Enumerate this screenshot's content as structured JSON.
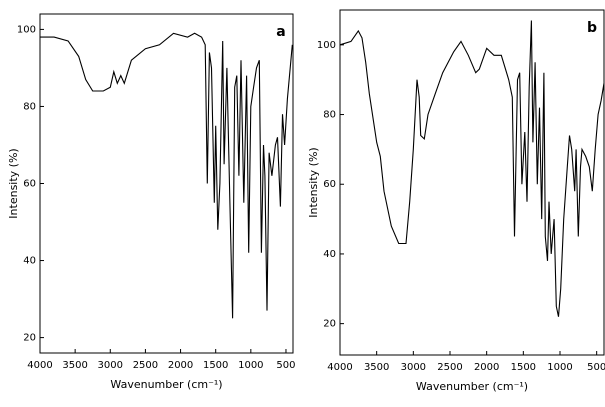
{
  "chart_data": [
    {
      "type": "line",
      "title": "a",
      "xlabel": "Wavenumber (cm⁻¹)",
      "ylabel": "Intensity (%)",
      "xlim": [
        4000,
        400
      ],
      "ylim": [
        16,
        104
      ],
      "xticks": [
        4000,
        3500,
        3000,
        2500,
        2000,
        1500,
        1000,
        500
      ],
      "yticks": [
        20,
        40,
        60,
        80,
        100
      ],
      "x": [
        4000,
        3800,
        3600,
        3450,
        3350,
        3250,
        3100,
        3000,
        2950,
        2900,
        2850,
        2800,
        2700,
        2500,
        2300,
        2100,
        1900,
        1800,
        1700,
        1650,
        1620,
        1590,
        1560,
        1520,
        1500,
        1470,
        1440,
        1400,
        1380,
        1340,
        1300,
        1260,
        1230,
        1200,
        1170,
        1140,
        1100,
        1060,
        1030,
        1000,
        960,
        920,
        880,
        850,
        820,
        800,
        770,
        740,
        700,
        650,
        620,
        580,
        550,
        520,
        480,
        440,
        410
      ],
      "series": [
        {
          "name": "a",
          "color": "#000000",
          "values": [
            98,
            98,
            97,
            93,
            87,
            84,
            84,
            85,
            89,
            86,
            88,
            86,
            92,
            95,
            96,
            99,
            98,
            99,
            98,
            96,
            60,
            94,
            90,
            55,
            75,
            48,
            60,
            97,
            65,
            90,
            56,
            25,
            85,
            88,
            62,
            92,
            55,
            88,
            42,
            80,
            85,
            90,
            92,
            42,
            70,
            62,
            27,
            68,
            62,
            70,
            72,
            54,
            78,
            70,
            82,
            90,
            96
          ]
        }
      ]
    },
    {
      "type": "line",
      "title": "b",
      "xlabel": "Wavenumber (cm⁻¹)",
      "ylabel": "Intensity (%)",
      "xlim": [
        4000,
        400
      ],
      "ylim": [
        11,
        110
      ],
      "xticks": [
        4000,
        3500,
        3000,
        2500,
        2000,
        1500,
        1000,
        500
      ],
      "yticks": [
        20,
        40,
        60,
        80,
        100
      ],
      "x": [
        4000,
        3850,
        3750,
        3700,
        3650,
        3600,
        3500,
        3450,
        3400,
        3300,
        3200,
        3100,
        3050,
        3000,
        2950,
        2920,
        2900,
        2850,
        2800,
        2700,
        2600,
        2450,
        2350,
        2250,
        2150,
        2100,
        2000,
        1900,
        1800,
        1700,
        1650,
        1620,
        1580,
        1550,
        1520,
        1480,
        1450,
        1420,
        1390,
        1370,
        1340,
        1310,
        1280,
        1250,
        1220,
        1200,
        1170,
        1150,
        1120,
        1080,
        1050,
        1020,
        990,
        950,
        900,
        870,
        840,
        800,
        780,
        750,
        720,
        700,
        650,
        600,
        560,
        520,
        480,
        440,
        400
      ],
      "series": [
        {
          "name": "b",
          "color": "#000000",
          "values": [
            100,
            101,
            104,
            102,
            95,
            86,
            72,
            68,
            58,
            48,
            43,
            43,
            55,
            70,
            90,
            85,
            74,
            73,
            80,
            86,
            92,
            98,
            101,
            97,
            92,
            93,
            99,
            97,
            97,
            90,
            85,
            45,
            90,
            92,
            60,
            75,
            55,
            88,
            107,
            72,
            95,
            60,
            82,
            50,
            92,
            45,
            38,
            55,
            40,
            50,
            25,
            22,
            30,
            50,
            65,
            74,
            70,
            58,
            70,
            45,
            65,
            70,
            68,
            65,
            58,
            70,
            80,
            84,
            89
          ]
        }
      ]
    }
  ]
}
